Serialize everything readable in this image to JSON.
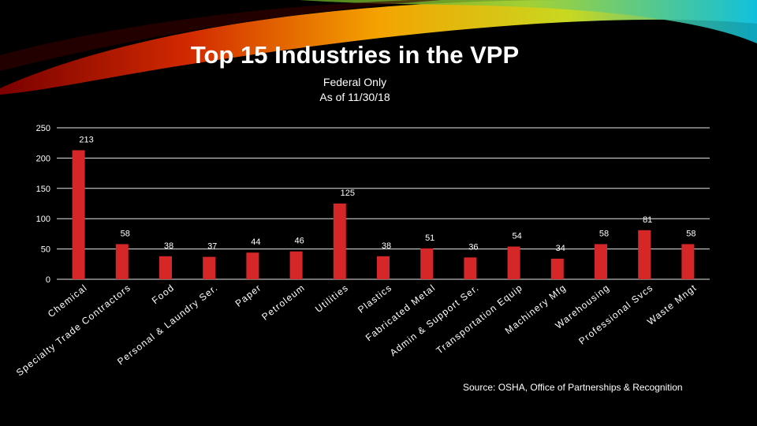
{
  "slide": {
    "title": "Top 15 Industries in the VPP",
    "subtitle_line1": "Federal Only",
    "subtitle_line2": "As of 11/30/18",
    "source": "Source: OSHA, Office of Partnerships & Recognition"
  },
  "colors": {
    "background": "#000000",
    "bar": "#d62728",
    "text": "#ffffff",
    "grid": "#e6e6e6"
  },
  "chart_data": {
    "type": "bar",
    "title": "Top 15 Industries in the VPP",
    "subtitle": "Federal Only / As of 11/30/18",
    "xlabel": "",
    "ylabel": "",
    "ylim": [
      0,
      250
    ],
    "yticks": [
      0,
      50,
      100,
      150,
      200,
      250
    ],
    "grid": true,
    "legend": "none",
    "categories": [
      "Chemical",
      "Specialty Trade Contractors",
      "Food",
      "Personal & Laundry Ser.",
      "Paper",
      "Petroleum",
      "Utilities",
      "Plastics",
      "Fabricated Metal",
      "Admin & Support Ser.",
      "Transportation Equip",
      "Machinery Mfg",
      "Warehousing",
      "Professional Svcs",
      "Waste Mngt"
    ],
    "values": [
      213,
      58,
      38,
      37,
      44,
      46,
      125,
      38,
      51,
      36,
      54,
      34,
      58,
      81,
      58
    ]
  }
}
